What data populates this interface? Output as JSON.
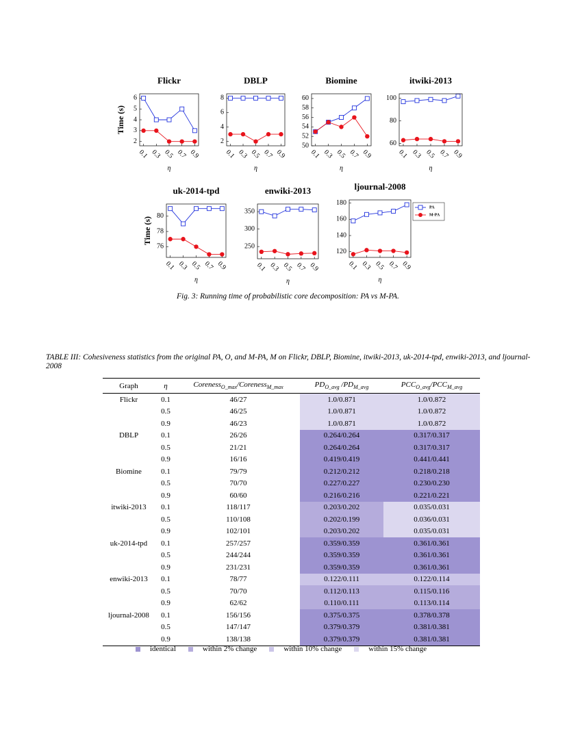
{
  "chart_data": [
    {
      "type": "line",
      "title": "Flickr",
      "y_label": "Time (s)",
      "x_label": "η",
      "x": [
        0.1,
        0.3,
        0.5,
        0.7,
        0.9
      ],
      "xlim": [
        0.04,
        0.96
      ],
      "xticks": [
        0.1,
        0.3,
        0.5,
        0.7,
        0.9
      ],
      "ylim": [
        1.6,
        6.4
      ],
      "yticks": [
        2,
        3,
        4,
        5,
        6
      ],
      "series": [
        {
          "color": "#2233dd",
          "marker": "square",
          "values": [
            6,
            4,
            4,
            5,
            3
          ]
        },
        {
          "color": "#e8141c",
          "marker": "circle",
          "values": [
            3,
            3,
            2,
            2,
            2
          ]
        }
      ]
    },
    {
      "type": "line",
      "title": "DBLP",
      "x_label": "η",
      "x": [
        0.1,
        0.3,
        0.5,
        0.7,
        0.9
      ],
      "xlim": [
        0.04,
        0.96
      ],
      "xticks": [
        0.1,
        0.3,
        0.5,
        0.7,
        0.9
      ],
      "ylim": [
        1.4,
        8.6
      ],
      "yticks": [
        2,
        4,
        6,
        8
      ],
      "series": [
        {
          "color": "#2233dd",
          "marker": "square",
          "values": [
            8,
            8,
            8,
            8,
            8
          ]
        },
        {
          "color": "#e8141c",
          "marker": "circle",
          "values": [
            3,
            3,
            2,
            3,
            3
          ]
        }
      ]
    },
    {
      "type": "line",
      "title": "Biomine",
      "x_label": "η",
      "x": [
        0.1,
        0.3,
        0.5,
        0.7,
        0.9
      ],
      "xlim": [
        0.04,
        0.96
      ],
      "xticks": [
        0.1,
        0.3,
        0.5,
        0.7,
        0.9
      ],
      "ylim": [
        50,
        61
      ],
      "yticks": [
        50,
        52,
        54,
        56,
        58,
        60
      ],
      "series": [
        {
          "color": "#2233dd",
          "marker": "square",
          "values": [
            53,
            55,
            56,
            58,
            60
          ]
        },
        {
          "color": "#e8141c",
          "marker": "circle",
          "values": [
            53,
            55,
            54,
            56,
            52
          ]
        }
      ]
    },
    {
      "type": "line",
      "title": "itwiki-2013",
      "x_label": "η",
      "x": [
        0.1,
        0.3,
        0.5,
        0.7,
        0.9
      ],
      "xlim": [
        0.04,
        0.96
      ],
      "xticks": [
        0.1,
        0.3,
        0.5,
        0.7,
        0.9
      ],
      "ylim": [
        58,
        104
      ],
      "yticks": [
        60,
        80,
        100
      ],
      "series": [
        {
          "color": "#2233dd",
          "marker": "square",
          "values": [
            97,
            98,
            99,
            98,
            102
          ]
        },
        {
          "color": "#e8141c",
          "marker": "circle",
          "values": [
            63,
            64,
            64,
            62,
            62
          ]
        }
      ]
    },
    {
      "type": "line",
      "title": "uk-2014-tpd",
      "y_label": "Time (s)",
      "x_label": "η",
      "x": [
        0.1,
        0.3,
        0.5,
        0.7,
        0.9
      ],
      "xlim": [
        0.04,
        0.96
      ],
      "xticks": [
        0.1,
        0.3,
        0.5,
        0.7,
        0.9
      ],
      "ylim": [
        74.6,
        81.6
      ],
      "yticks": [
        76,
        78,
        80
      ],
      "series": [
        {
          "color": "#2233dd",
          "marker": "square",
          "values": [
            81,
            79,
            81,
            81,
            81
          ]
        },
        {
          "color": "#e8141c",
          "marker": "circle",
          "values": [
            77,
            77,
            76,
            75,
            75
          ]
        }
      ]
    },
    {
      "type": "line",
      "title": "enwiki-2013",
      "x_label": "η",
      "x": [
        0.1,
        0.3,
        0.5,
        0.7,
        0.9
      ],
      "xlim": [
        0.04,
        0.96
      ],
      "xticks": [
        0.1,
        0.3,
        0.5,
        0.7,
        0.9
      ],
      "ylim": [
        215,
        372
      ],
      "yticks": [
        250,
        300,
        350
      ],
      "series": [
        {
          "color": "#2233dd",
          "marker": "square",
          "values": [
            350,
            338,
            357,
            357,
            355
          ]
        },
        {
          "color": "#e8141c",
          "marker": "circle",
          "values": [
            235,
            237,
            228,
            230,
            231
          ]
        }
      ]
    },
    {
      "type": "line",
      "title": "ljournal-2008",
      "x_label": "η",
      "x": [
        0.1,
        0.3,
        0.5,
        0.7,
        0.9
      ],
      "xlim": [
        0.04,
        0.96
      ],
      "xticks": [
        0.1,
        0.3,
        0.5,
        0.7,
        0.9
      ],
      "ylim": [
        113,
        184
      ],
      "yticks": [
        120,
        140,
        160,
        180
      ],
      "legend": "outside-right",
      "series": [
        {
          "name": "PA",
          "color": "#2233dd",
          "marker": "square",
          "values": [
            158,
            166,
            168,
            170,
            178
          ]
        },
        {
          "name": "M-PA",
          "color": "#e8141c",
          "marker": "circle",
          "values": [
            117,
            122,
            121,
            121,
            119
          ]
        }
      ]
    }
  ],
  "figure_caption": "Fig. 3: Running time of probabilistic core decomposition: PA vs M-PA.",
  "table": {
    "caption": "TABLE III: Cohesiveness statistics from the original PA, O, and M-PA, M on Flickr, DBLP, Biomine, itwiki-2013, uk-2014-tpd, enwiki-2013, and ljournal-2008",
    "headers": [
      [
        [
          "Graph"
        ]
      ],
      [
        [
          "η"
        ]
      ],
      [
        [
          "Coreness",
          "O_max"
        ],
        [
          "/Coreness",
          "M_max"
        ]
      ],
      [
        [
          "PD",
          "O_avg"
        ],
        [
          " /PD",
          "M_avg"
        ]
      ],
      [
        [
          "PCC",
          "O_avg"
        ],
        [
          "/PCC",
          "M_avg"
        ]
      ]
    ],
    "groups": [
      {
        "graph": "Flickr",
        "rows": [
          {
            "eta": "0.1",
            "coreness": "46/27",
            "pd": {
              "text": "1.0/0.871",
              "color": "#dcd8ef"
            },
            "pcc": {
              "text": "1.0/0.872",
              "color": "#dcd8ef"
            }
          },
          {
            "eta": "0.5",
            "coreness": "46/25",
            "pd": {
              "text": "1.0/0.871",
              "color": "#dcd8ef"
            },
            "pcc": {
              "text": "1.0/0.872",
              "color": "#dcd8ef"
            }
          },
          {
            "eta": "0.9",
            "coreness": "46/23",
            "pd": {
              "text": "1.0/0.871",
              "color": "#dcd8ef"
            },
            "pcc": {
              "text": "1.0/0.872",
              "color": "#dcd8ef"
            }
          }
        ]
      },
      {
        "graph": "DBLP",
        "rows": [
          {
            "eta": "0.1",
            "coreness": "26/26",
            "pd": {
              "text": "0.264/0.264",
              "color": "#9d93d1"
            },
            "pcc": {
              "text": "0.317/0.317",
              "color": "#9d93d1"
            }
          },
          {
            "eta": "0.5",
            "coreness": "21/21",
            "pd": {
              "text": "0.264/0.264",
              "color": "#9d93d1"
            },
            "pcc": {
              "text": "0.317/0.317",
              "color": "#9d93d1"
            }
          },
          {
            "eta": "0.9",
            "coreness": "16/16",
            "pd": {
              "text": "0.419/0.419",
              "color": "#9d93d1"
            },
            "pcc": {
              "text": "0.441/0.441",
              "color": "#9d93d1"
            }
          }
        ]
      },
      {
        "graph": "Biomine",
        "rows": [
          {
            "eta": "0.1",
            "coreness": "79/79",
            "pd": {
              "text": "0.212/0.212",
              "color": "#9d93d1"
            },
            "pcc": {
              "text": "0.218/0.218",
              "color": "#9d93d1"
            }
          },
          {
            "eta": "0.5",
            "coreness": "70/70",
            "pd": {
              "text": "0.227/0.227",
              "color": "#9d93d1"
            },
            "pcc": {
              "text": "0.230/0.230",
              "color": "#9d93d1"
            }
          },
          {
            "eta": "0.9",
            "coreness": "60/60",
            "pd": {
              "text": "0.216/0.216",
              "color": "#9d93d1"
            },
            "pcc": {
              "text": "0.221/0.221",
              "color": "#9d93d1"
            }
          }
        ]
      },
      {
        "graph": "itwiki-2013",
        "rows": [
          {
            "eta": "0.1",
            "coreness": "118/117",
            "pd": {
              "text": "0.203/0.202",
              "color": "#b5acdc"
            },
            "pcc": {
              "text": "0.035/0.031",
              "color": "#dcd8ef"
            }
          },
          {
            "eta": "0.5",
            "coreness": "110/108",
            "pd": {
              "text": "0.202/0.199",
              "color": "#b5acdc"
            },
            "pcc": {
              "text": "0.036/0.031",
              "color": "#dcd8ef"
            }
          },
          {
            "eta": "0.9",
            "coreness": "102/101",
            "pd": {
              "text": "0.203/0.202",
              "color": "#b5acdc"
            },
            "pcc": {
              "text": "0.035/0.031",
              "color": "#dcd8ef"
            }
          }
        ]
      },
      {
        "graph": "uk-2014-tpd",
        "rows": [
          {
            "eta": "0.1",
            "coreness": "257/257",
            "pd": {
              "text": "0.359/0.359",
              "color": "#9d93d1"
            },
            "pcc": {
              "text": "0.361/0.361",
              "color": "#9d93d1"
            }
          },
          {
            "eta": "0.5",
            "coreness": "244/244",
            "pd": {
              "text": "0.359/0.359",
              "color": "#9d93d1"
            },
            "pcc": {
              "text": "0.361/0.361",
              "color": "#9d93d1"
            }
          },
          {
            "eta": "0.9",
            "coreness": "231/231",
            "pd": {
              "text": "0.359/0.359",
              "color": "#9d93d1"
            },
            "pcc": {
              "text": "0.361/0.361",
              "color": "#9d93d1"
            }
          }
        ]
      },
      {
        "graph": "enwiki-2013",
        "rows": [
          {
            "eta": "0.1",
            "coreness": "78/77",
            "pd": {
              "text": "0.122/0.111",
              "color": "#cbc5e8"
            },
            "pcc": {
              "text": "0.122/0.114",
              "color": "#cbc5e8"
            }
          },
          {
            "eta": "0.5",
            "coreness": "70/70",
            "pd": {
              "text": "0.112/0.113",
              "color": "#b5acdc"
            },
            "pcc": {
              "text": "0.115/0.116",
              "color": "#b5acdc"
            }
          },
          {
            "eta": "0.9",
            "coreness": "62/62",
            "pd": {
              "text": "0.110/0.111",
              "color": "#b5acdc"
            },
            "pcc": {
              "text": "0.113/0.114",
              "color": "#b5acdc"
            }
          }
        ]
      },
      {
        "graph": "ljournal-2008",
        "rows": [
          {
            "eta": "0.1",
            "coreness": "156/156",
            "pd": {
              "text": "0.375/0.375",
              "color": "#9d93d1"
            },
            "pcc": {
              "text": "0.378/0.378",
              "color": "#9d93d1"
            }
          },
          {
            "eta": "0.5",
            "coreness": "147/147",
            "pd": {
              "text": "0.379/0.379",
              "color": "#9d93d1"
            },
            "pcc": {
              "text": "0.381/0.381",
              "color": "#9d93d1"
            }
          },
          {
            "eta": "0.9",
            "coreness": "138/138",
            "pd": {
              "text": "0.379/0.379",
              "color": "#9d93d1"
            },
            "pcc": {
              "text": "0.381/0.381",
              "color": "#9d93d1"
            }
          }
        ]
      }
    ],
    "legend": [
      {
        "label": "identical",
        "color": "#9d93d1"
      },
      {
        "label": "within 2% change",
        "color": "#b5acdc"
      },
      {
        "label": "within 10% change",
        "color": "#cbc5e8"
      },
      {
        "label": "within 15% change",
        "color": "#dcd8ef"
      }
    ]
  }
}
